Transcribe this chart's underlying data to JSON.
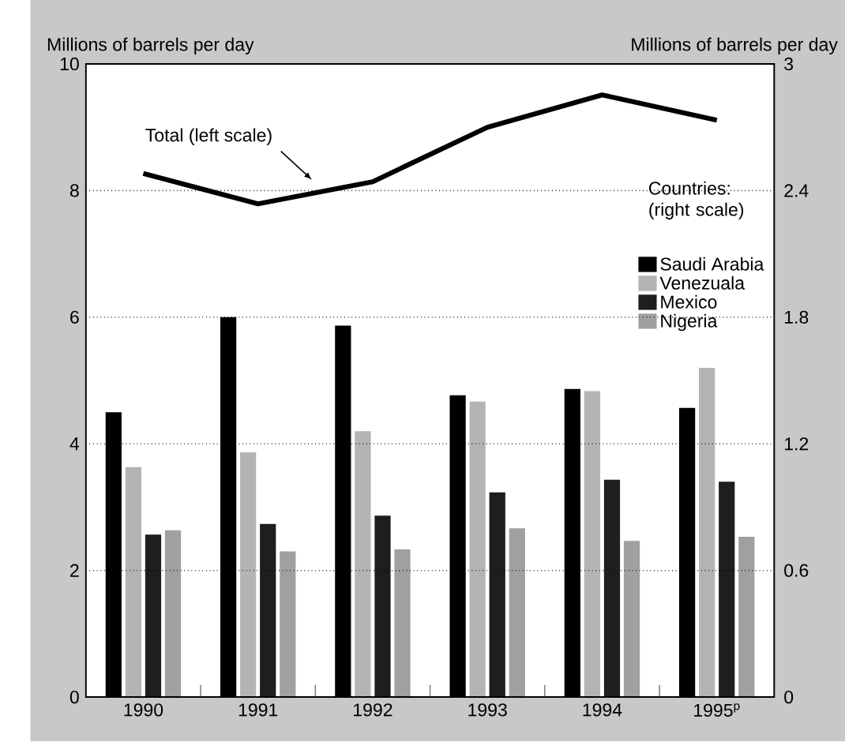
{
  "chart_data": {
    "type": "bar",
    "categories": [
      "1990",
      "1991",
      "1992",
      "1993",
      "1994",
      "1995$^{p}$"
    ],
    "ylabel": "Millions of barrels per day",
    "y2label": "Millions of barrels per day",
    "legend_title": "Countries: (right scale)",
    "ylim": [
      0,
      10
    ],
    "yticks": [
      0,
      2,
      4,
      6,
      8,
      10
    ],
    "y2lim": [
      0,
      3
    ],
    "y2ticks": [
      0,
      0.6,
      1.2,
      1.8,
      2.4,
      3
    ],
    "grid": "y",
    "legend": "right",
    "series": [
      {
        "name": "Total (left scale)",
        "type": "line",
        "axis": "y",
        "color": "#000000",
        "values": [
          8.27,
          7.79,
          8.14,
          9.0,
          9.51,
          9.11
        ]
      },
      {
        "name": "Saudi Arabia",
        "axis": "y2",
        "color": "#000000",
        "values": [
          1.35,
          1.8,
          1.76,
          1.43,
          1.46,
          1.37
        ]
      },
      {
        "name": "Venezuala",
        "axis": "y2",
        "color": "#b4b4b4",
        "values": [
          1.09,
          1.16,
          1.26,
          1.4,
          1.45,
          1.56
        ]
      },
      {
        "name": "Mexico",
        "axis": "y2",
        "color": "#1e1e1e",
        "values": [
          0.77,
          0.82,
          0.86,
          0.97,
          1.03,
          1.02
        ]
      },
      {
        "name": "Nigeria",
        "axis": "y2",
        "color": "#a0a0a0",
        "values": [
          0.79,
          0.69,
          0.7,
          0.8,
          0.74,
          0.76
        ]
      }
    ]
  }
}
